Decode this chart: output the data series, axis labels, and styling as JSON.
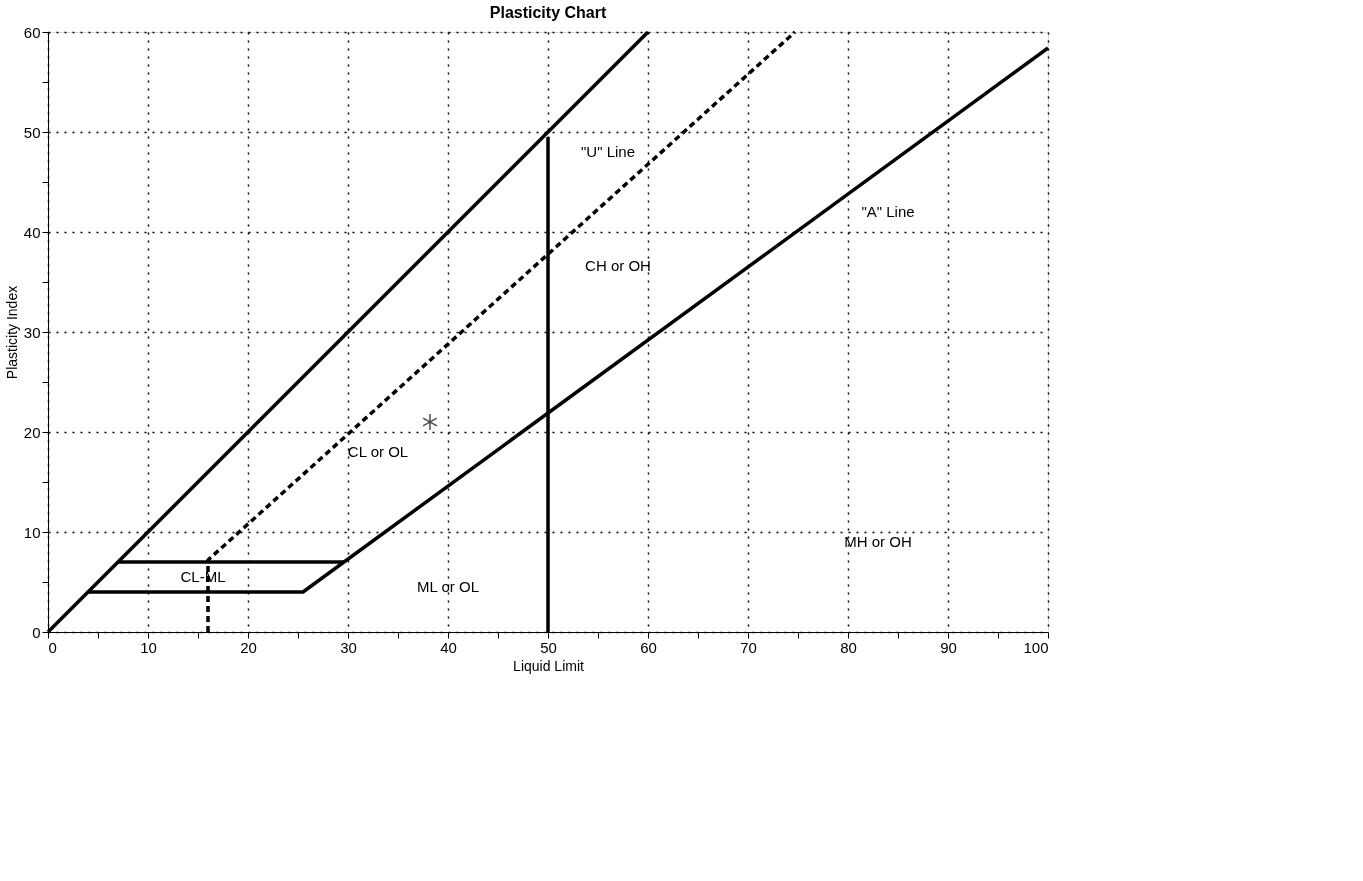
{
  "chart_data": {
    "type": "line",
    "title": "Plasticity Chart",
    "xlabel": "Liquid Limit",
    "ylabel": "Plasticity Index",
    "xlim": [
      0,
      100
    ],
    "ylim": [
      0,
      60
    ],
    "xticks": [
      0,
      {
        "value": 5,
        "label": null
      },
      10,
      {
        "value": 15,
        "label": null
      },
      20,
      {
        "value": 25,
        "label": null
      },
      30,
      {
        "value": 35,
        "label": null
      },
      40,
      {
        "value": 45,
        "label": null
      },
      50,
      {
        "value": 55,
        "label": null
      },
      60,
      {
        "value": 65,
        "label": null
      },
      70,
      {
        "value": 75,
        "label": null
      },
      80,
      {
        "value": 85,
        "label": null
      },
      90,
      {
        "value": 95,
        "label": null
      },
      100
    ],
    "yticks": [
      0,
      {
        "value": 5,
        "label": null
      },
      10,
      {
        "value": 15,
        "label": null
      },
      20,
      {
        "value": 25,
        "label": null
      },
      30,
      {
        "value": 35,
        "label": null
      },
      40,
      {
        "value": 45,
        "label": null
      },
      50,
      {
        "value": 55,
        "label": null
      },
      60
    ],
    "grid": true,
    "series": [
      {
        "color": "#000000",
        "line_style": "solid",
        "marker": "none",
        "x": [
          0,
          60
        ],
        "values": [
          0,
          60
        ]
      },
      {
        "color": "#000000",
        "line_style": "dashed",
        "marker": "none",
        "x": [
          16,
          16,
          74.7
        ],
        "values": [
          0,
          7.2,
          60
        ]
      },
      {
        "color": "#000000",
        "line_style": "solid",
        "marker": "none",
        "x": [
          4,
          25.5,
          29.6,
          100
        ],
        "values": [
          4,
          4,
          7,
          58.4
        ]
      },
      {
        "color": "#000000",
        "line_style": "solid",
        "marker": "none",
        "x": [
          7,
          29.6
        ],
        "values": [
          7,
          7
        ]
      },
      {
        "color": "#000000",
        "line_style": "solid",
        "marker": "none",
        "x": [
          50,
          50
        ],
        "values": [
          0,
          49.5
        ]
      },
      {
        "type": "scatter",
        "color": "#000000",
        "marker": "cross",
        "x": [
          38.2
        ],
        "values": [
          21
        ]
      }
    ],
    "annotations": [
      "\"U\" Line",
      "\"A\" Line",
      "CH or OH",
      "CL or OL",
      "CL-ML",
      "ML or OL",
      "MH or OH"
    ]
  }
}
